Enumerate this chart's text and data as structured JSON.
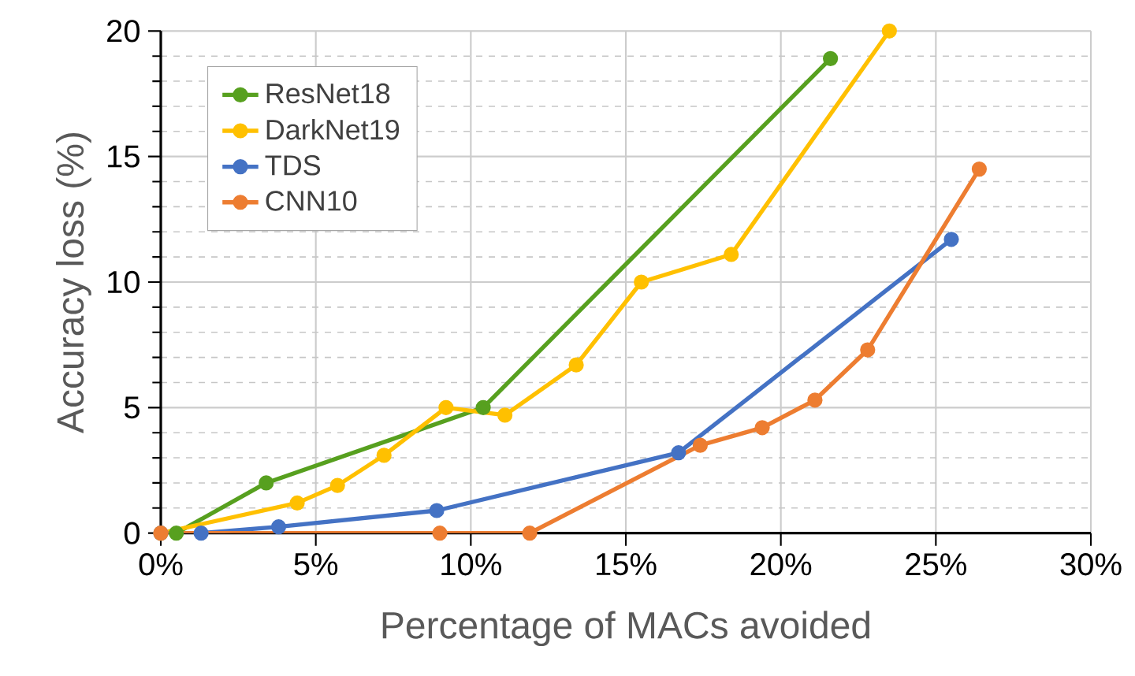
{
  "chart_data": {
    "type": "line",
    "xlabel": "Percentage of MACs avoided",
    "ylabel": "Accuracy loss (%)",
    "xlim": [
      0,
      30
    ],
    "ylim": [
      0,
      20
    ],
    "xticks": [
      {
        "value": 0,
        "label": "0%"
      },
      {
        "value": 5,
        "label": "5%"
      },
      {
        "value": 10,
        "label": "10%"
      },
      {
        "value": 15,
        "label": "15%"
      },
      {
        "value": 20,
        "label": "20%"
      },
      {
        "value": 25,
        "label": "25%"
      },
      {
        "value": 30,
        "label": "30%"
      }
    ],
    "yticks": [
      0,
      5,
      10,
      15,
      20
    ],
    "grid": true,
    "legend": "top left",
    "marker": "circle",
    "line_style": "solid",
    "series": [
      {
        "name": "ResNet18",
        "color": "#57a01f",
        "x": [
          0.5,
          3.4,
          10.4,
          21.6
        ],
        "values": [
          0,
          2.0,
          5.0,
          18.9
        ]
      },
      {
        "name": "DarkNet19",
        "color": "#ffc000",
        "x": [
          0,
          4.4,
          5.7,
          7.2,
          9.2,
          11.1,
          13.4,
          15.5,
          18.4,
          23.5
        ],
        "values": [
          0,
          1.2,
          1.9,
          3.1,
          5.0,
          4.7,
          6.7,
          10.0,
          11.1,
          20
        ]
      },
      {
        "name": "TDS",
        "color": "#4472c4",
        "x": [
          0,
          1.3,
          3.8,
          8.9,
          16.7,
          25.5
        ],
        "values": [
          0,
          0,
          0.25,
          0.9,
          3.2,
          11.7
        ]
      },
      {
        "name": "CNN10",
        "color": "#ed7d31",
        "x": [
          0,
          9.0,
          11.9,
          17.4,
          19.4,
          21.1,
          22.8,
          26.4
        ],
        "values": [
          0,
          0,
          0,
          3.5,
          4.2,
          5.3,
          7.3,
          14.5
        ]
      }
    ]
  }
}
